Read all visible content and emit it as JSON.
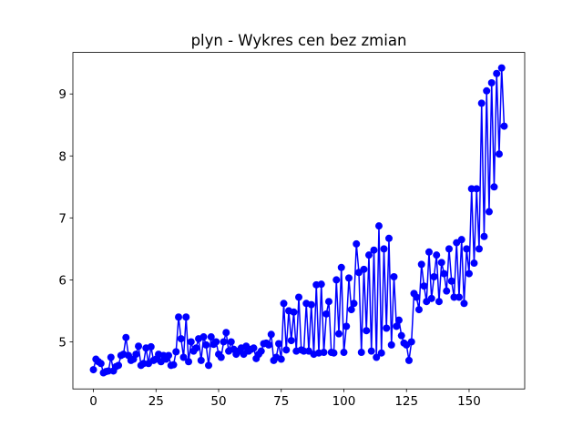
{
  "chart_data": {
    "type": "line",
    "title": "plyn - Wykres cen bez zmian",
    "x": [
      0,
      1,
      2,
      3,
      4,
      5,
      6,
      7,
      8,
      9,
      10,
      11,
      12,
      13,
      14,
      15,
      16,
      17,
      18,
      19,
      20,
      21,
      22,
      23,
      24,
      25,
      26,
      27,
      28,
      29,
      30,
      31,
      32,
      33,
      34,
      35,
      36,
      37,
      38,
      39,
      40,
      41,
      42,
      43,
      44,
      45,
      46,
      47,
      48,
      49,
      50,
      51,
      52,
      53,
      54,
      55,
      56,
      57,
      58,
      59,
      60,
      61,
      62,
      63,
      64,
      65,
      66,
      67,
      68,
      69,
      70,
      71,
      72,
      73,
      74,
      75,
      76,
      77,
      78,
      79,
      80,
      81,
      82,
      83,
      84,
      85,
      86,
      87,
      88,
      89,
      90,
      91,
      92,
      93,
      94,
      95,
      96,
      97,
      98,
      99,
      100,
      101,
      102,
      103,
      104,
      105,
      106,
      107,
      108,
      109,
      110,
      111,
      112,
      113,
      114,
      115,
      116,
      117,
      118,
      119,
      120,
      121,
      122,
      123,
      124,
      125,
      126,
      127,
      128,
      129,
      130,
      131,
      132,
      133,
      134,
      135,
      136,
      137,
      138,
      139,
      140,
      141,
      142,
      143,
      144,
      145,
      146,
      147,
      148,
      149,
      150,
      151,
      152,
      153,
      154,
      155,
      156,
      157,
      158,
      159,
      160,
      161,
      162,
      163,
      164
    ],
    "series": [
      {
        "color": "#0000ff",
        "values": [
          4.55,
          4.72,
          4.68,
          4.65,
          4.5,
          4.52,
          4.53,
          4.75,
          4.53,
          4.6,
          4.62,
          4.78,
          4.8,
          5.07,
          4.78,
          4.7,
          4.72,
          4.8,
          4.93,
          4.62,
          4.65,
          4.9,
          4.65,
          4.92,
          4.7,
          4.72,
          4.8,
          4.68,
          4.78,
          4.72,
          4.78,
          4.62,
          4.63,
          4.84,
          5.4,
          5.05,
          4.75,
          5.4,
          4.68,
          5.0,
          4.85,
          4.9,
          5.05,
          4.7,
          5.08,
          4.95,
          4.62,
          5.08,
          4.96,
          5.0,
          4.8,
          4.75,
          5.0,
          5.15,
          4.85,
          5.0,
          4.88,
          4.8,
          4.85,
          4.9,
          4.8,
          4.93,
          4.85,
          4.88,
          4.9,
          4.73,
          4.8,
          4.85,
          4.97,
          4.98,
          4.95,
          5.12,
          4.7,
          4.75,
          4.97,
          4.72,
          5.62,
          4.87,
          5.5,
          5.02,
          5.48,
          4.85,
          5.72,
          4.87,
          4.85,
          5.62,
          4.85,
          5.6,
          4.8,
          5.92,
          4.82,
          5.93,
          4.83,
          5.45,
          5.65,
          4.83,
          4.82,
          6.0,
          5.13,
          6.2,
          4.83,
          5.25,
          6.03,
          5.52,
          5.62,
          6.58,
          6.12,
          4.83,
          6.17,
          5.18,
          6.4,
          4.85,
          6.48,
          4.75,
          6.87,
          4.82,
          6.5,
          5.22,
          6.67,
          4.95,
          6.05,
          5.25,
          5.35,
          5.1,
          4.98,
          4.95,
          4.7,
          5.0,
          5.78,
          5.72,
          5.52,
          6.25,
          5.9,
          5.65,
          6.45,
          5.7,
          6.05,
          6.4,
          5.65,
          6.28,
          6.1,
          5.82,
          6.5,
          5.98,
          5.72,
          6.6,
          5.72,
          6.65,
          5.62,
          6.5,
          6.1,
          7.47,
          6.27,
          7.47,
          6.5,
          8.85,
          6.7,
          9.05,
          7.1,
          9.18,
          7.5,
          9.33,
          8.03,
          9.42,
          8.48
        ]
      }
    ],
    "xlim": [
      -8.2,
      172.2
    ],
    "xticks": [
      0,
      25,
      50,
      75,
      100,
      125,
      150
    ],
    "ylim": [
      4.24,
      9.67
    ],
    "yticks": [
      5,
      6,
      7,
      8,
      9
    ]
  }
}
